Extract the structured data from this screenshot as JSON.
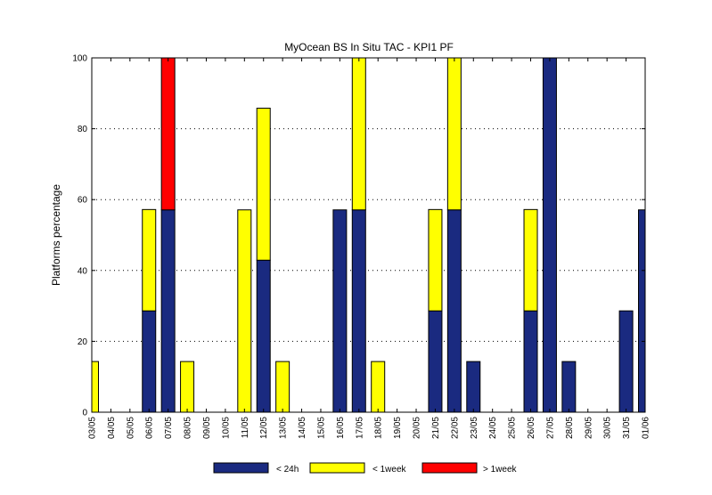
{
  "colors": {
    "lt24h": "#1a2a80",
    "lt1week": "#ffff00",
    "gt1week": "#ff0000",
    "axis": "#000000",
    "grid": "#000000"
  },
  "chart_data": {
    "type": "bar",
    "stacked": true,
    "title": "MyOcean  BS In Situ TAC - KPI1  PF",
    "xlabel": "",
    "ylabel": "Platforms percentage",
    "ylim": [
      0,
      100
    ],
    "yticks": [
      0,
      20,
      40,
      60,
      80,
      100
    ],
    "grid": "horizontal dotted",
    "legend_position": "bottom",
    "categories": [
      "03/05",
      "04/05",
      "05/05",
      "06/05",
      "07/05",
      "08/05",
      "09/05",
      "10/05",
      "11/05",
      "12/05",
      "13/05",
      "14/05",
      "15/05",
      "16/05",
      "17/05",
      "18/05",
      "19/05",
      "20/05",
      "21/05",
      "22/05",
      "23/05",
      "24/05",
      "25/05",
      "26/05",
      "27/05",
      "28/05",
      "29/05",
      "30/05",
      "31/05",
      "01/06"
    ],
    "series": [
      {
        "name": "< 24h",
        "color_key": "lt24h",
        "values": [
          0,
          0,
          0,
          28.6,
          57.1,
          0,
          0,
          0,
          0,
          42.9,
          0,
          0,
          0,
          57.1,
          57.1,
          0,
          0,
          0,
          28.6,
          57.1,
          14.3,
          0,
          0,
          28.6,
          100,
          14.3,
          0,
          0,
          28.6,
          57.1
        ]
      },
      {
        "name": "< 1week",
        "color_key": "lt1week",
        "values": [
          14.3,
          0,
          0,
          28.6,
          0,
          14.3,
          0,
          0,
          57.1,
          42.9,
          14.3,
          0,
          0,
          0,
          42.9,
          14.3,
          0,
          0,
          28.6,
          42.9,
          0,
          0,
          0,
          28.6,
          0,
          0,
          0,
          0,
          0,
          0
        ]
      },
      {
        "name": "> 1week",
        "color_key": "gt1week",
        "values": [
          0,
          0,
          0,
          0,
          42.9,
          0,
          0,
          0,
          0,
          0,
          0,
          0,
          0,
          0,
          0,
          0,
          0,
          0,
          0,
          0,
          0,
          0,
          0,
          0,
          0,
          0,
          0,
          0,
          0,
          0
        ]
      }
    ]
  }
}
